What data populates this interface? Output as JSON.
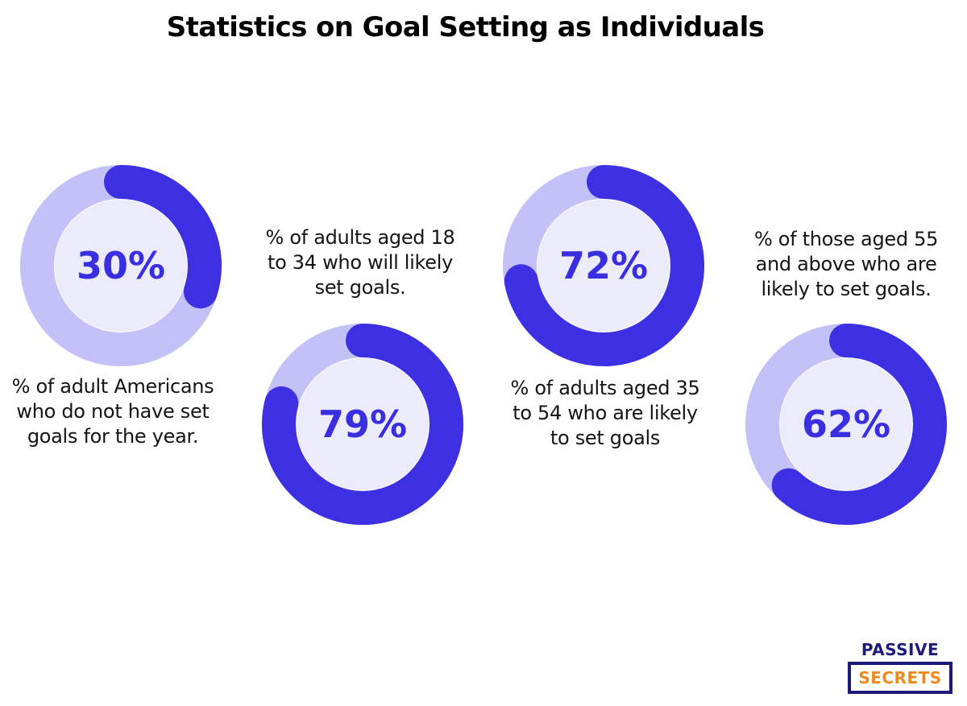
{
  "title": "Statistics on Goal Setting as Individuals",
  "colors": {
    "track": "#c4c0f8",
    "fill": "#3d2fe2",
    "inner": "#ecebfc",
    "text": "#3a2fe0"
  },
  "chart_data": [
    {
      "type": "pie",
      "value": 30,
      "label_text": "30%",
      "caption": [
        "% of adult Americans",
        "who do not have set",
        "goals for the year."
      ]
    },
    {
      "type": "pie",
      "value": 79,
      "label_text": "79%",
      "caption": [
        "% of adults aged 18",
        "to 34 who will likely",
        "set goals."
      ]
    },
    {
      "type": "pie",
      "value": 72,
      "label_text": "72%",
      "caption": [
        "% of adults aged 35",
        "to 54 who are likely",
        "to set goals"
      ]
    },
    {
      "type": "pie",
      "value": 62,
      "label_text": "62%",
      "caption": [
        "% of those aged 55",
        "and above who are",
        "likely to set goals."
      ]
    }
  ],
  "logo": {
    "line1": "PASSIVE",
    "line2": "SECRETS"
  }
}
